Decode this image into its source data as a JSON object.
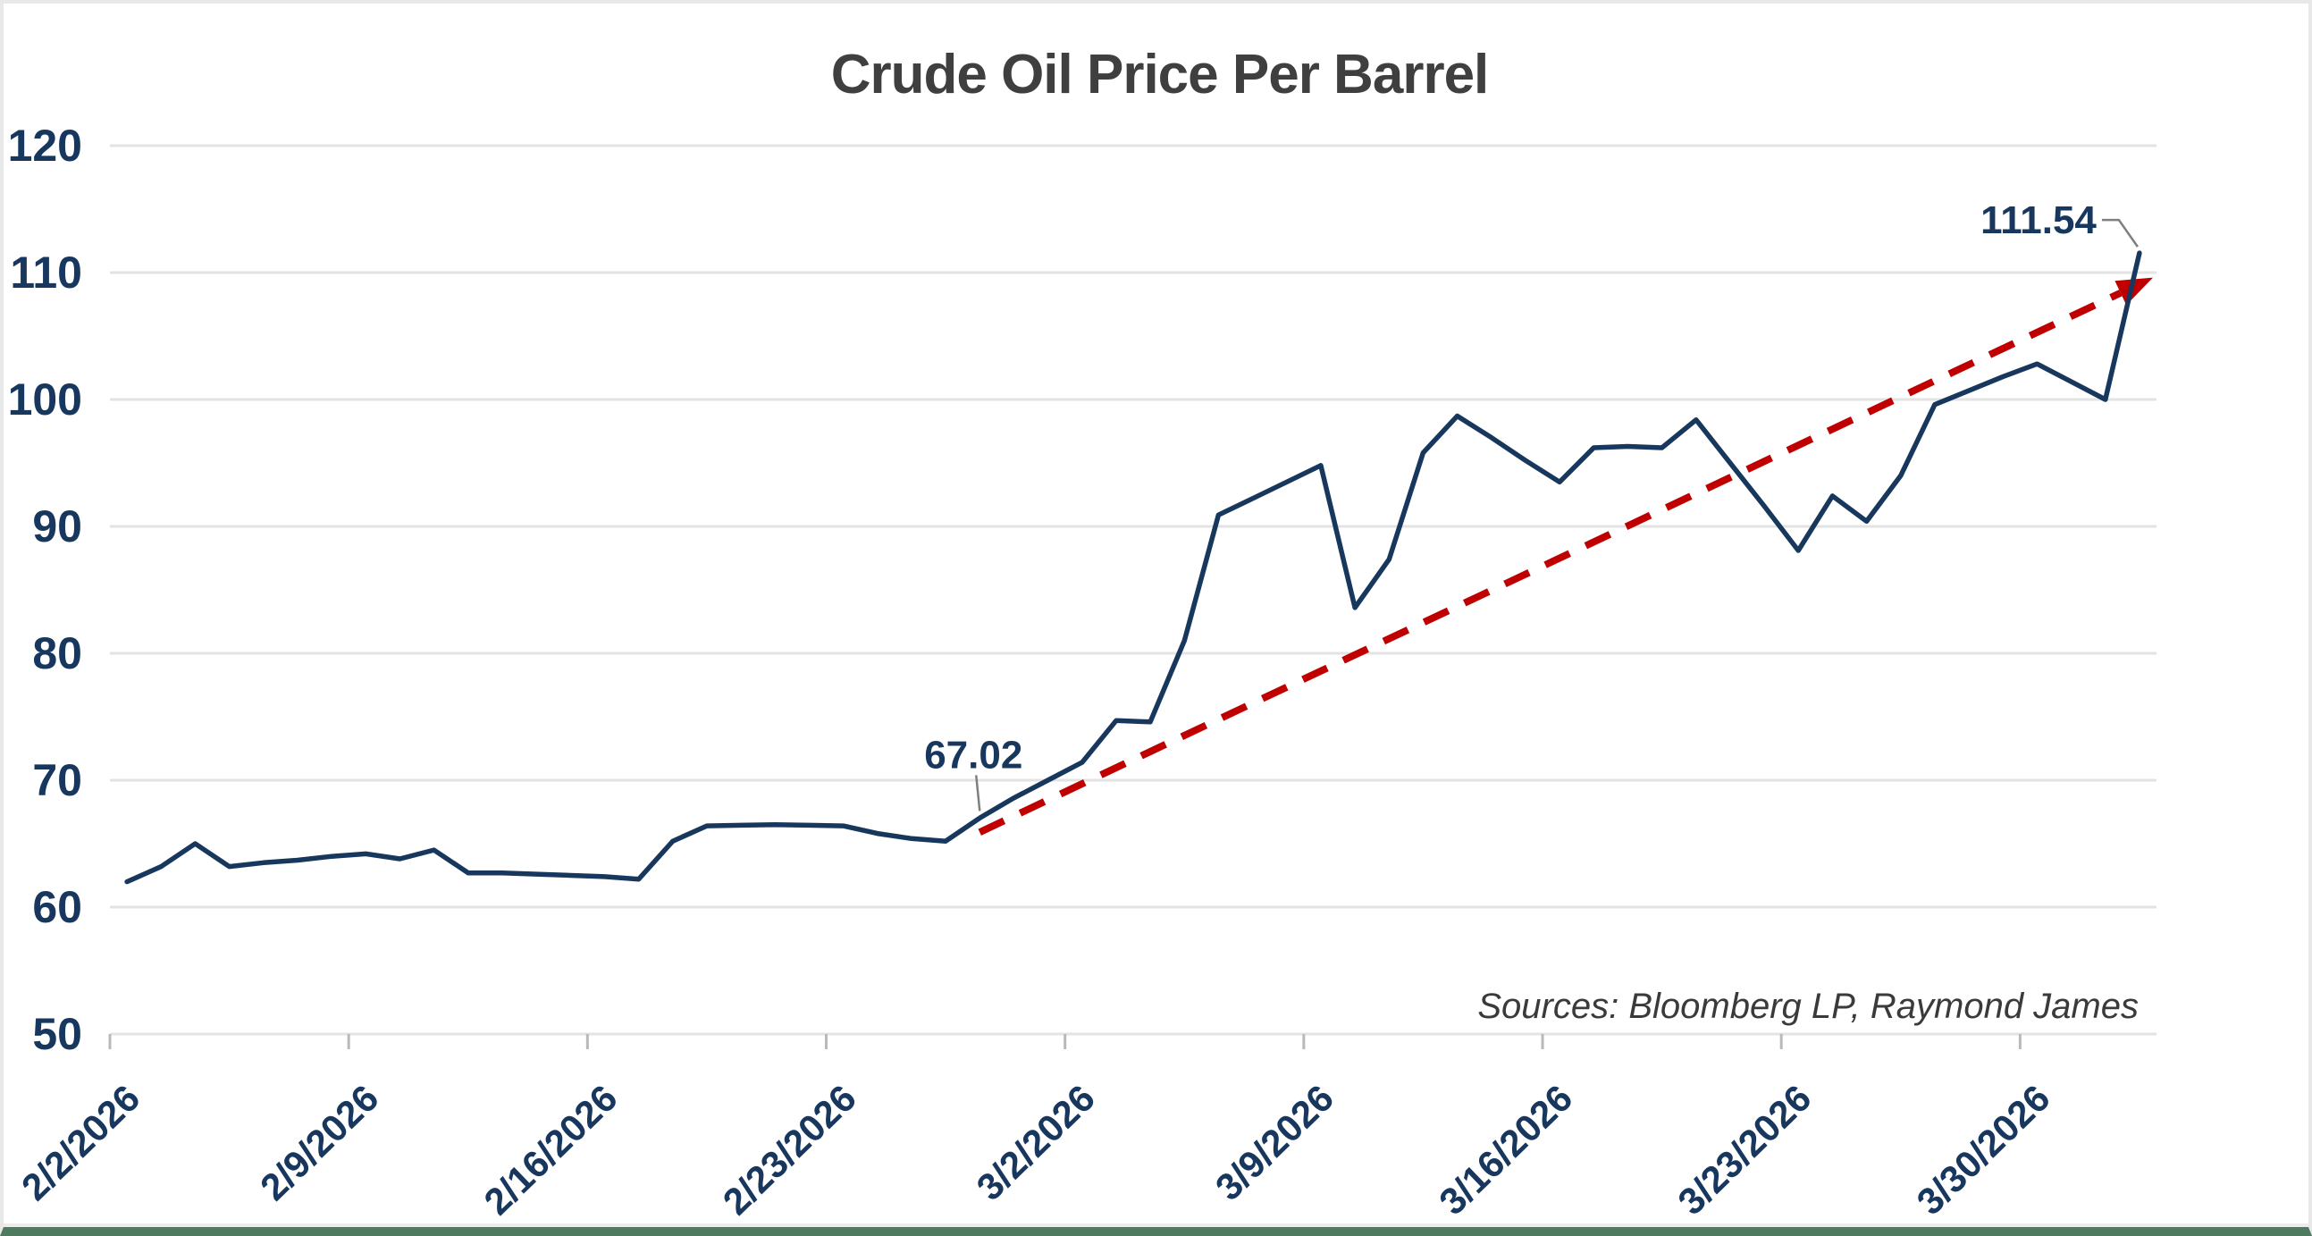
{
  "title": "Crude Oil Price Per Barrel",
  "source_note": "Sources: Bloomberg LP, Raymond James",
  "colors": {
    "line": "#17375d",
    "trend": "#c00000",
    "axis_label": "#17375e",
    "title": "#3f3f3f",
    "source": "#3a3a3a",
    "grid": "#e3e3e3",
    "tick": "#b9b9b9",
    "leader": "#7f7f7f",
    "border_bottom": "#4e7b5f"
  },
  "annotations": [
    {
      "label": "67.02",
      "date": "2/27/2026"
    },
    {
      "label": "111.54",
      "date": "4/2/2026"
    }
  ],
  "chart_data": {
    "type": "line",
    "title": "Crude Oil Price Per Barrel",
    "xlabel": "",
    "ylabel": "",
    "ylim": [
      50,
      120
    ],
    "y_ticks": [
      50,
      60,
      70,
      80,
      90,
      100,
      110,
      120
    ],
    "x_tick_labels": [
      "2/2/2026",
      "2/9/2026",
      "2/16/2026",
      "2/23/2026",
      "3/2/2026",
      "3/9/2026",
      "3/16/2026",
      "3/23/2026",
      "3/30/2026"
    ],
    "grid": "horizontal",
    "legend": "none",
    "series": [
      {
        "name": "Crude Oil Price Per Barrel",
        "x": [
          "2/2/2026",
          "2/3/2026",
          "2/4/2026",
          "2/5/2026",
          "2/6/2026",
          "2/7/2026",
          "2/8/2026",
          "2/9/2026",
          "2/10/2026",
          "2/11/2026",
          "2/12/2026",
          "2/13/2026",
          "2/14/2026",
          "2/15/2026",
          "2/16/2026",
          "2/17/2026",
          "2/18/2026",
          "2/19/2026",
          "2/20/2026",
          "2/21/2026",
          "2/22/2026",
          "2/23/2026",
          "2/24/2026",
          "2/25/2026",
          "2/26/2026",
          "2/27/2026",
          "2/28/2026",
          "3/1/2026",
          "3/2/2026",
          "3/3/2026",
          "3/4/2026",
          "3/5/2026",
          "3/6/2026",
          "3/7/2026",
          "3/8/2026",
          "3/9/2026",
          "3/10/2026",
          "3/11/2026",
          "3/12/2026",
          "3/13/2026",
          "3/14/2026",
          "3/15/2026",
          "3/16/2026",
          "3/17/2026",
          "3/18/2026",
          "3/19/2026",
          "3/20/2026",
          "3/21/2026",
          "3/22/2026",
          "3/23/2026",
          "3/24/2026",
          "3/25/2026",
          "3/26/2026",
          "3/27/2026",
          "3/28/2026",
          "3/29/2026",
          "3/30/2026",
          "3/31/2026",
          "4/1/2026",
          "4/2/2026"
        ],
        "values": [
          62.0,
          63.2,
          65.0,
          63.2,
          63.5,
          63.7,
          64.0,
          64.2,
          63.8,
          64.5,
          62.7,
          62.7,
          62.6,
          62.5,
          62.4,
          62.2,
          65.2,
          66.4,
          66.45,
          66.5,
          66.45,
          66.4,
          65.8,
          65.4,
          65.2,
          67.02,
          68.6,
          70.0,
          71.4,
          74.7,
          74.6,
          81.0,
          90.9,
          92.2,
          93.5,
          94.8,
          83.6,
          87.4,
          95.8,
          98.7,
          97.0,
          95.2,
          93.5,
          96.2,
          96.3,
          96.2,
          98.4,
          95.0,
          91.6,
          88.1,
          92.4,
          90.4,
          94.0,
          99.6,
          100.7,
          101.8,
          102.8,
          101.4,
          100.0,
          111.54
        ]
      }
    ],
    "trend_line": {
      "style": "dashed",
      "arrow": true,
      "start_date": "2/27/2026",
      "start_value": 65.9,
      "end_value": 109.6
    }
  }
}
